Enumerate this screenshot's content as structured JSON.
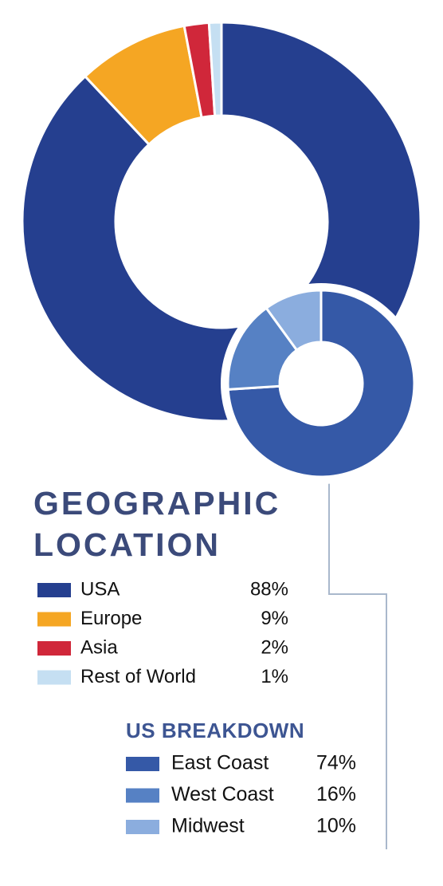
{
  "chart_data": [
    {
      "type": "donut",
      "title": "GEOGRAPHIC LOCATION",
      "categories": [
        "USA",
        "Europe",
        "Asia",
        "Rest of World"
      ],
      "values": [
        88,
        9,
        2,
        1
      ],
      "value_labels": [
        "88%",
        "9%",
        "2%",
        "1%"
      ],
      "colors": [
        "#253f8f",
        "#f5a623",
        "#d0273a",
        "#c5dff2"
      ]
    },
    {
      "type": "donut",
      "title": "US BREAKDOWN",
      "categories": [
        "East Coast",
        "West Coast",
        "Midwest"
      ],
      "values": [
        74,
        16,
        10
      ],
      "value_labels": [
        "74%",
        "16%",
        "10%"
      ],
      "colors": [
        "#3559a7",
        "#5681c4",
        "#8badde"
      ]
    }
  ]
}
